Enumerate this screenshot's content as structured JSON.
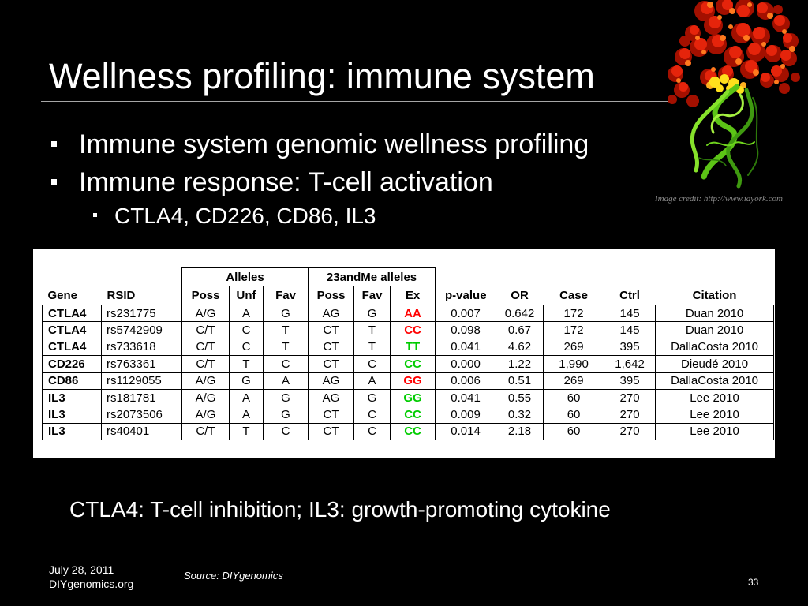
{
  "slide": {
    "title": "Wellness profiling: immune system",
    "bullets": [
      "Immune system genomic wellness profiling",
      "Immune response: T-cell activation"
    ],
    "sub_bullets": [
      "CTLA4, CD226, CD86, IL3"
    ],
    "image": {
      "icon": "protein-structure-image"
    },
    "image_credit": "Image credit: http://www.iayork.com",
    "caption": "CTLA4: T-cell inhibition; IL3: growth-promoting cytokine"
  },
  "table": {
    "group_headers": {
      "alleles": "Alleles",
      "andme": "23andMe alleles"
    },
    "columns": [
      "Gene",
      "RSID",
      "Poss",
      "Unf",
      "Fav",
      "Poss",
      "Fav",
      "Ex",
      "p-value",
      "OR",
      "Case",
      "Ctrl",
      "Citation"
    ],
    "rows": [
      {
        "cells": [
          "CTLA4",
          "rs231775",
          "A/G",
          "A",
          "G",
          "AG",
          "G",
          "AA",
          "0.007",
          "0.642",
          "172",
          "145",
          "Duan 2010"
        ],
        "ex_color": "#ff0000"
      },
      {
        "cells": [
          "CTLA4",
          "rs5742909",
          "C/T",
          "C",
          "T",
          "CT",
          "T",
          "CC",
          "0.098",
          "0.67",
          "172",
          "145",
          "Duan 2010"
        ],
        "ex_color": "#ff0000"
      },
      {
        "cells": [
          "CTLA4",
          "rs733618",
          "C/T",
          "C",
          "T",
          "CT",
          "T",
          "TT",
          "0.041",
          "4.62",
          "269",
          "395",
          "DallaCosta 2010"
        ],
        "ex_color": "#00cc00"
      },
      {
        "cells": [
          "CD226",
          "rs763361",
          "C/T",
          "T",
          "C",
          "CT",
          "C",
          "CC",
          "0.000",
          "1.22",
          "1,990",
          "1,642",
          "Dieudé 2010"
        ],
        "ex_color": "#00cc00"
      },
      {
        "cells": [
          "CD86",
          "rs1129055",
          "A/G",
          "G",
          "A",
          "AG",
          "A",
          "GG",
          "0.006",
          "0.51",
          "269",
          "395",
          "DallaCosta 2010"
        ],
        "ex_color": "#ff0000"
      },
      {
        "cells": [
          "IL3",
          "rs181781",
          "A/G",
          "A",
          "G",
          "AG",
          "G",
          "GG",
          "0.041",
          "0.55",
          "60",
          "270",
          "Lee 2010"
        ],
        "ex_color": "#00cc00"
      },
      {
        "cells": [
          "IL3",
          "rs2073506",
          "A/G",
          "A",
          "G",
          "CT",
          "C",
          "CC",
          "0.009",
          "0.32",
          "60",
          "270",
          "Lee 2010"
        ],
        "ex_color": "#00cc00"
      },
      {
        "cells": [
          "IL3",
          "rs40401",
          "C/T",
          "T",
          "C",
          "CT",
          "C",
          "CC",
          "0.014",
          "2.18",
          "60",
          "270",
          "Lee 2010"
        ],
        "ex_color": "#00cc00"
      }
    ]
  },
  "footer": {
    "date": "July 28, 2011",
    "site": "DIYgenomics.org",
    "source": "Source: DIYgenomics",
    "page_number": "33"
  },
  "colors": {
    "background": "#000000",
    "text": "#ffffff",
    "divider": "#a6a6a6",
    "table_panel": "#ffffff",
    "ex_red": "#ff0000",
    "ex_green": "#00cc00"
  }
}
